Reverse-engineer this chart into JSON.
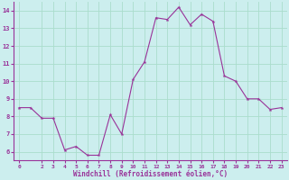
{
  "x": [
    0,
    1,
    2,
    3,
    4,
    5,
    6,
    7,
    8,
    9,
    10,
    11,
    12,
    13,
    14,
    15,
    16,
    17,
    18,
    19,
    20,
    21,
    22,
    23
  ],
  "y": [
    8.5,
    8.5,
    7.9,
    7.9,
    6.1,
    6.3,
    5.8,
    5.8,
    8.1,
    7.0,
    10.1,
    11.1,
    13.6,
    13.5,
    14.2,
    13.2,
    13.8,
    13.4,
    10.3,
    10.0,
    9.0,
    9.0,
    8.4,
    8.5
  ],
  "ylim": [
    5.5,
    14.5
  ],
  "yticks": [
    6,
    7,
    8,
    9,
    10,
    11,
    12,
    13,
    14
  ],
  "xticks": [
    0,
    2,
    3,
    4,
    5,
    6,
    7,
    8,
    9,
    10,
    11,
    12,
    13,
    14,
    15,
    16,
    17,
    18,
    19,
    20,
    21,
    22,
    23
  ],
  "xlabel": "Windchill (Refroidissement éolien,°C)",
  "line_color": "#993399",
  "marker": "*",
  "marker_size": 3,
  "bg_color": "#cceeee",
  "grid_color": "#aaddcc",
  "tick_label_color": "#993399",
  "axis_label_color": "#993399",
  "figsize": [
    3.2,
    2.0
  ],
  "dpi": 100
}
